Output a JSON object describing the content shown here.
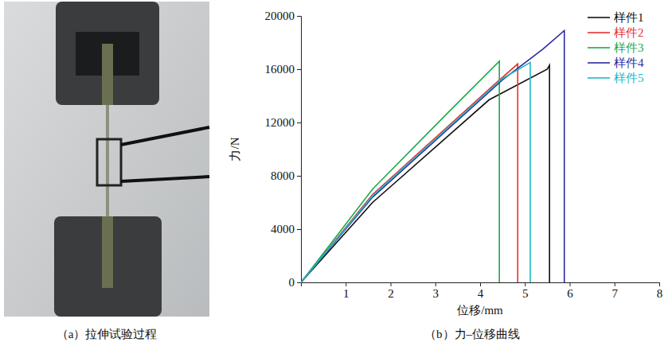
{
  "figure": {
    "caption": "（a）拉伸试验过程"
  },
  "chart_data": {
    "type": "line",
    "title": "（b）力–位移曲线",
    "x_label": "位移/mm",
    "y_label": "力/N",
    "xlim": [
      0,
      8
    ],
    "xticks": [
      1,
      2,
      3,
      4,
      5,
      6,
      7,
      8
    ],
    "ylim": [
      0,
      20000
    ],
    "yticks": [
      0,
      4000,
      8000,
      12000,
      16000,
      20000
    ],
    "grid": false,
    "legend": "upper right",
    "series": [
      {
        "name": "样件1",
        "color": "#111111",
        "x": [
          0,
          1.6,
          4.2,
          5.5,
          5.55,
          5.55
        ],
        "values": [
          0,
          6000,
          13700,
          16000,
          16300,
          0
        ]
      },
      {
        "name": "样件2",
        "color": "#e8302a",
        "x": [
          0,
          1.6,
          4.3,
          4.84,
          4.84
        ],
        "values": [
          0,
          6600,
          14800,
          16400,
          0
        ]
      },
      {
        "name": "样件3",
        "color": "#1fa84a",
        "x": [
          0,
          1.6,
          3.3,
          4.43,
          4.43
        ],
        "values": [
          0,
          7000,
          12800,
          16600,
          0
        ]
      },
      {
        "name": "样件4",
        "color": "#2b2b9c",
        "x": [
          0,
          1.6,
          4.5,
          5.4,
          5.88,
          5.88
        ],
        "values": [
          0,
          6400,
          15200,
          17500,
          18900,
          0
        ]
      },
      {
        "name": "样件5",
        "color": "#22b8c8",
        "x": [
          0,
          1.6,
          4.5,
          5.12,
          5.12
        ],
        "values": [
          0,
          6500,
          15300,
          16500,
          0
        ]
      }
    ]
  }
}
